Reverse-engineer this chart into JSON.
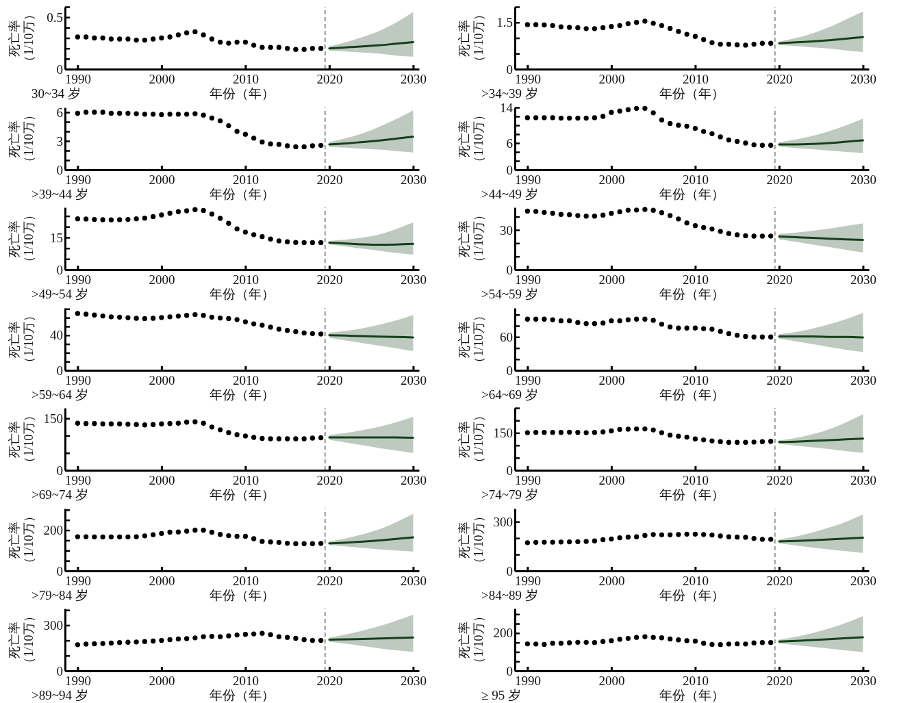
{
  "chart_data": [
    {
      "type": "line",
      "xlabel": "年份（年）",
      "ylabel": "死亡率（1/10万）",
      "annotations": [
        "30~34 岁"
      ],
      "xlim": [
        1988.5,
        2030.7
      ],
      "xticks": [
        1990,
        2000,
        2010,
        2020,
        2030
      ],
      "ylim": [
        0,
        0.6
      ],
      "yticks": [
        0,
        {
          "value": 0.1,
          "label": null
        },
        {
          "value": 0.2,
          "label": null
        },
        {
          "value": 0.3,
          "label": null
        },
        {
          "value": 0.4,
          "label": null
        },
        0.5,
        {
          "value": 0.6,
          "label": null
        }
      ],
      "ref_lines": [
        {
          "axis": "x",
          "value": 2019.5,
          "color": "#999999",
          "line_style": "dashed"
        }
      ],
      "series": [
        {
          "type": "scatter",
          "marker": "circle",
          "color": "#000000",
          "x": [
            1990,
            1991,
            1992,
            1993,
            1994,
            1995,
            1996,
            1997,
            1998,
            1999,
            2000,
            2001,
            2002,
            2003,
            2004,
            2005,
            2006,
            2007,
            2008,
            2009,
            2010,
            2011,
            2012,
            2013,
            2014,
            2015,
            2016,
            2017,
            2018,
            2019
          ],
          "values": [
            0.31,
            0.31,
            0.3,
            0.3,
            0.29,
            0.29,
            0.29,
            0.28,
            0.28,
            0.29,
            0.3,
            0.31,
            0.33,
            0.35,
            0.36,
            0.33,
            0.29,
            0.26,
            0.25,
            0.26,
            0.26,
            0.23,
            0.21,
            0.21,
            0.21,
            0.2,
            0.19,
            0.19,
            0.2,
            0.2
          ]
        },
        {
          "marker": "none",
          "color": "#14401a",
          "x": [
            2020,
            2022,
            2024,
            2026,
            2028,
            2030
          ],
          "values": [
            0.2,
            0.21,
            0.22,
            0.23,
            0.245,
            0.26
          ],
          "lower": [
            0.18,
            0.17,
            0.16,
            0.15,
            0.13,
            0.12
          ],
          "upper": [
            0.22,
            0.26,
            0.31,
            0.37,
            0.45,
            0.55
          ]
        }
      ]
    },
    {
      "type": "line",
      "xlabel": "年份（年）",
      "ylabel": "死亡率（1/10万）",
      "annotations": [
        ">34~39 岁"
      ],
      "xlim": [
        1988.5,
        2030.7
      ],
      "xticks": [
        1990,
        2000,
        2010,
        2020,
        2030
      ],
      "ylim": [
        0,
        2
      ],
      "yticks": [
        0,
        {
          "value": 0.5,
          "label": null
        },
        {
          "value": 1,
          "label": null
        },
        1.5,
        {
          "value": 2,
          "label": null
        }
      ],
      "ref_lines": [
        {
          "axis": "x",
          "value": 2019.5,
          "color": "#999999",
          "line_style": "dashed"
        }
      ],
      "series": [
        {
          "type": "scatter",
          "marker": "circle",
          "color": "#000000",
          "x": [
            1990,
            1991,
            1992,
            1993,
            1994,
            1995,
            1996,
            1997,
            1998,
            1999,
            2000,
            2001,
            2002,
            2003,
            2004,
            2005,
            2006,
            2007,
            2008,
            2009,
            2010,
            2011,
            2012,
            2013,
            2014,
            2015,
            2016,
            2017,
            2018,
            2019
          ],
          "values": [
            1.43,
            1.43,
            1.42,
            1.4,
            1.36,
            1.34,
            1.33,
            1.3,
            1.3,
            1.33,
            1.37,
            1.4,
            1.46,
            1.5,
            1.54,
            1.47,
            1.4,
            1.31,
            1.21,
            1.12,
            1.05,
            0.95,
            0.85,
            0.8,
            0.8,
            0.78,
            0.77,
            0.8,
            0.83,
            0.83
          ]
        },
        {
          "marker": "none",
          "color": "#14401a",
          "x": [
            2020,
            2022,
            2024,
            2026,
            2028,
            2030
          ],
          "values": [
            0.83,
            0.86,
            0.89,
            0.93,
            0.98,
            1.03
          ],
          "lower": [
            0.78,
            0.74,
            0.7,
            0.66,
            0.6,
            0.55
          ],
          "upper": [
            0.88,
            1.0,
            1.15,
            1.35,
            1.6,
            1.85
          ]
        }
      ]
    },
    {
      "type": "line",
      "xlabel": "年份（年）",
      "ylabel": "死亡率（1/10万）",
      "annotations": [
        ">39~44 岁"
      ],
      "xlim": [
        1988.5,
        2030.7
      ],
      "xticks": [
        1990,
        2000,
        2010,
        2020,
        2030
      ],
      "ylim": [
        0,
        6.5
      ],
      "yticks": [
        0,
        {
          "value": 1,
          "label": null
        },
        {
          "value": 2,
          "label": null
        },
        3,
        {
          "value": 4,
          "label": null
        },
        {
          "value": 5,
          "label": null
        },
        6
      ],
      "ref_lines": [
        {
          "axis": "x",
          "value": 2019.5,
          "color": "#999999",
          "line_style": "dashed"
        }
      ],
      "series": [
        {
          "type": "scatter",
          "marker": "circle",
          "color": "#000000",
          "x": [
            1990,
            1991,
            1992,
            1993,
            1994,
            1995,
            1996,
            1997,
            1998,
            1999,
            2000,
            2001,
            2002,
            2003,
            2004,
            2005,
            2006,
            2007,
            2008,
            2009,
            2010,
            2011,
            2012,
            2013,
            2014,
            2015,
            2016,
            2017,
            2018,
            2019
          ],
          "values": [
            5.9,
            6.0,
            6.0,
            6.0,
            5.9,
            5.9,
            5.9,
            5.85,
            5.8,
            5.8,
            5.75,
            5.8,
            5.8,
            5.8,
            5.85,
            5.7,
            5.4,
            5.1,
            4.6,
            4.0,
            3.7,
            3.3,
            2.9,
            2.7,
            2.65,
            2.5,
            2.4,
            2.4,
            2.5,
            2.55
          ]
        },
        {
          "marker": "none",
          "color": "#14401a",
          "x": [
            2020,
            2022,
            2024,
            2026,
            2028,
            2030
          ],
          "values": [
            2.65,
            2.75,
            2.9,
            3.05,
            3.25,
            3.45
          ],
          "lower": [
            2.4,
            2.3,
            2.2,
            2.1,
            1.95,
            1.8
          ],
          "upper": [
            2.9,
            3.3,
            3.8,
            4.5,
            5.3,
            6.2
          ]
        }
      ]
    },
    {
      "type": "line",
      "xlabel": "年份（年）",
      "ylabel": "死亡率（1/10万）",
      "annotations": [
        ">44~49 岁"
      ],
      "xlim": [
        1988.5,
        2030.7
      ],
      "xticks": [
        1990,
        2000,
        2010,
        2020,
        2030
      ],
      "ylim": [
        0,
        14
      ],
      "yticks": [
        0,
        {
          "value": 2,
          "label": null
        },
        {
          "value": 4,
          "label": null
        },
        6,
        {
          "value": 8,
          "label": null
        },
        {
          "value": 10,
          "label": null
        },
        {
          "value": 12,
          "label": null
        },
        14
      ],
      "ref_lines": [
        {
          "axis": "x",
          "value": 2019.5,
          "color": "#999999",
          "line_style": "dashed"
        }
      ],
      "series": [
        {
          "type": "scatter",
          "marker": "circle",
          "color": "#000000",
          "x": [
            1990,
            1991,
            1992,
            1993,
            1994,
            1995,
            1996,
            1997,
            1998,
            1999,
            2000,
            2001,
            2002,
            2003,
            2004,
            2005,
            2006,
            2007,
            2008,
            2009,
            2010,
            2011,
            2012,
            2013,
            2014,
            2015,
            2016,
            2017,
            2018,
            2019
          ],
          "values": [
            11.7,
            11.7,
            11.7,
            11.7,
            11.6,
            11.6,
            11.6,
            11.6,
            11.7,
            12.0,
            12.9,
            13.2,
            13.5,
            13.8,
            13.8,
            12.8,
            11.2,
            10.4,
            10.0,
            9.8,
            9.3,
            8.6,
            8.1,
            7.4,
            6.7,
            6.4,
            6.0,
            5.6,
            5.5,
            5.5
          ]
        },
        {
          "marker": "none",
          "color": "#14401a",
          "x": [
            2020,
            2022,
            2024,
            2026,
            2028,
            2030
          ],
          "values": [
            5.7,
            5.7,
            5.8,
            6.0,
            6.3,
            6.6
          ],
          "lower": [
            5.2,
            4.9,
            4.6,
            4.3,
            4.0,
            3.8
          ],
          "upper": [
            6.2,
            6.8,
            7.6,
            8.7,
            10.0,
            11.5
          ]
        }
      ]
    },
    {
      "type": "line",
      "xlabel": "年份（年）",
      "ylabel": "死亡率（1/10万）",
      "annotations": [
        ">49~54 岁"
      ],
      "xlim": [
        1988.5,
        2030.7
      ],
      "xticks": [
        1990,
        2000,
        2010,
        2020,
        2030
      ],
      "ylim": [
        0,
        29
      ],
      "yticks": [
        0,
        {
          "value": 5,
          "label": null
        },
        {
          "value": 10,
          "label": null
        },
        15,
        {
          "value": 20,
          "label": null
        },
        {
          "value": 25,
          "label": null
        }
      ],
      "ref_lines": [
        {
          "axis": "x",
          "value": 2019.5,
          "color": "#999999",
          "line_style": "dashed"
        }
      ],
      "series": [
        {
          "type": "scatter",
          "marker": "circle",
          "color": "#000000",
          "x": [
            1990,
            1991,
            1992,
            1993,
            1994,
            1995,
            1996,
            1997,
            1998,
            1999,
            2000,
            2001,
            2002,
            2003,
            2004,
            2005,
            2006,
            2007,
            2008,
            2009,
            2010,
            2011,
            2012,
            2013,
            2014,
            2015,
            2016,
            2017,
            2018,
            2019
          ],
          "values": [
            23.7,
            23.6,
            23.4,
            23.3,
            23.2,
            23.3,
            23.4,
            23.7,
            24.0,
            24.7,
            25.5,
            26.3,
            27.0,
            27.4,
            28.0,
            27.6,
            25.9,
            23.9,
            21.6,
            19.0,
            17.5,
            16.3,
            15.4,
            14.3,
            13.4,
            13.0,
            12.7,
            12.6,
            12.6,
            12.6
          ]
        },
        {
          "marker": "none",
          "color": "#14401a",
          "x": [
            2020,
            2022,
            2024,
            2026,
            2028,
            2030
          ],
          "values": [
            12.6,
            12.2,
            11.8,
            11.6,
            11.7,
            12.0
          ],
          "lower": [
            11.8,
            10.8,
            9.8,
            8.8,
            7.8,
            7.0
          ],
          "upper": [
            13.4,
            14.0,
            15.0,
            16.5,
            19.0,
            22.0
          ]
        }
      ]
    },
    {
      "type": "line",
      "xlabel": "年份（年）",
      "ylabel": "死亡率（1/10万）",
      "annotations": [
        ">54~59 岁"
      ],
      "xlim": [
        1988.5,
        2030.7
      ],
      "xticks": [
        1990,
        2000,
        2010,
        2020,
        2030
      ],
      "ylim": [
        0,
        47
      ],
      "yticks": [
        0,
        {
          "value": 10,
          "label": null
        },
        {
          "value": 20,
          "label": null
        },
        30,
        {
          "value": 40,
          "label": null
        }
      ],
      "ref_lines": [
        {
          "axis": "x",
          "value": 2019.5,
          "color": "#999999",
          "line_style": "dashed"
        }
      ],
      "series": [
        {
          "type": "scatter",
          "marker": "circle",
          "color": "#000000",
          "x": [
            1990,
            1991,
            1992,
            1993,
            1994,
            1995,
            1996,
            1997,
            1998,
            1999,
            2000,
            2001,
            2002,
            2003,
            2004,
            2005,
            2006,
            2007,
            2008,
            2009,
            2010,
            2011,
            2012,
            2013,
            2014,
            2015,
            2016,
            2017,
            2018,
            2019
          ],
          "values": [
            44.2,
            44.0,
            43.2,
            42.6,
            41.7,
            41.5,
            40.9,
            40.4,
            40.4,
            41.2,
            42.5,
            43.7,
            44.9,
            45.0,
            45.5,
            44.8,
            43.0,
            40.9,
            38.3,
            35.3,
            33.2,
            31.8,
            30.7,
            28.9,
            27.3,
            26.4,
            25.6,
            25.3,
            25.3,
            25.4
          ]
        },
        {
          "marker": "none",
          "color": "#14401a",
          "x": [
            2020,
            2022,
            2024,
            2026,
            2028,
            2030
          ],
          "values": [
            25.0,
            24.5,
            24.0,
            23.4,
            22.9,
            22.5
          ],
          "lower": [
            23,
            21,
            19,
            17,
            15,
            13
          ],
          "upper": [
            27,
            28,
            29.5,
            31,
            33,
            35
          ]
        }
      ]
    },
    {
      "type": "line",
      "xlabel": "年份（年）",
      "ylabel": "死亡率（1/10万）",
      "annotations": [
        ">59~64 岁"
      ],
      "xlim": [
        1988.5,
        2030.7
      ],
      "xticks": [
        1990,
        2000,
        2010,
        2020,
        2030
      ],
      "ylim": [
        0,
        71
      ],
      "yticks": [
        0,
        {
          "value": 10,
          "label": null
        },
        {
          "value": 20,
          "label": null
        },
        {
          "value": 30,
          "label": null
        },
        40,
        {
          "value": 50,
          "label": null
        },
        {
          "value": 60,
          "label": null
        },
        {
          "value": 70,
          "label": null
        }
      ],
      "ref_lines": [
        {
          "axis": "x",
          "value": 2019.5,
          "color": "#999999",
          "line_style": "dashed"
        }
      ],
      "series": [
        {
          "type": "scatter",
          "marker": "circle",
          "color": "#000000",
          "x": [
            1990,
            1991,
            1992,
            1993,
            1994,
            1995,
            1996,
            1997,
            1998,
            1999,
            2000,
            2001,
            2002,
            2003,
            2004,
            2005,
            2006,
            2007,
            2008,
            2009,
            2010,
            2011,
            2012,
            2013,
            2014,
            2015,
            2016,
            2017,
            2018,
            2019
          ],
          "values": [
            64.8,
            64.0,
            63.0,
            62.0,
            61.0,
            60.6,
            60.0,
            59.3,
            59.0,
            59.3,
            60.2,
            61.0,
            61.8,
            62.6,
            63.5,
            62.6,
            60.6,
            59.6,
            59.0,
            57.9,
            55.3,
            53.0,
            51.4,
            49.2,
            46.9,
            45.5,
            44.1,
            42.6,
            41.9,
            41.4
          ]
        },
        {
          "marker": "none",
          "color": "#14401a",
          "x": [
            2020,
            2022,
            2024,
            2026,
            2028,
            2030
          ],
          "values": [
            40,
            39.5,
            39,
            38.5,
            38,
            37.5
          ],
          "lower": [
            37,
            34,
            31,
            28,
            25,
            22
          ],
          "upper": [
            43,
            45,
            48,
            52,
            57,
            63
          ]
        }
      ]
    },
    {
      "type": "line",
      "xlabel": "年份（年）",
      "ylabel": "死亡率（1/10万）",
      "annotations": [
        ">64~69 岁"
      ],
      "xlim": [
        1988.5,
        2030.7
      ],
      "xticks": [
        1990,
        2000,
        2010,
        2020,
        2030
      ],
      "ylim": [
        0,
        112
      ],
      "yticks": [
        0,
        {
          "value": 20,
          "label": null
        },
        {
          "value": 40,
          "label": null
        },
        60,
        {
          "value": 80,
          "label": null
        },
        {
          "value": 100,
          "label": null
        }
      ],
      "ref_lines": [
        {
          "axis": "x",
          "value": 2019.5,
          "color": "#999999",
          "line_style": "dashed"
        }
      ],
      "series": [
        {
          "type": "scatter",
          "marker": "circle",
          "color": "#000000",
          "x": [
            1990,
            1991,
            1992,
            1993,
            1994,
            1995,
            1996,
            1997,
            1998,
            1999,
            2000,
            2001,
            2002,
            2003,
            2004,
            2005,
            2006,
            2007,
            2008,
            2009,
            2010,
            2011,
            2012,
            2013,
            2014,
            2015,
            2016,
            2017,
            2018,
            2019
          ],
          "values": [
            92,
            92,
            92,
            91,
            89,
            89,
            86,
            84,
            84,
            85,
            89,
            89,
            91,
            92,
            92,
            90,
            83,
            78,
            76,
            76,
            76,
            75,
            74,
            70,
            66,
            63,
            61,
            60,
            60,
            60
          ]
        },
        {
          "marker": "none",
          "color": "#14401a",
          "x": [
            2020,
            2022,
            2024,
            2026,
            2028,
            2030
          ],
          "values": [
            61,
            61,
            61,
            60,
            60,
            59
          ],
          "lower": [
            57,
            52,
            47,
            42,
            37,
            33
          ],
          "upper": [
            65,
            69,
            75,
            83,
            92,
            103
          ]
        }
      ]
    },
    {
      "type": "line",
      "xlabel": "年份（年）",
      "ylabel": "死亡率（1/10万）",
      "annotations": [
        ">69~74 岁"
      ],
      "xlim": [
        1988.5,
        2030.7
      ],
      "xticks": [
        1990,
        2000,
        2010,
        2020,
        2030
      ],
      "ylim": [
        0,
        180
      ],
      "yticks": [
        0,
        {
          "value": 50,
          "label": null
        },
        {
          "value": 100,
          "label": null
        },
        150
      ],
      "ref_lines": [
        {
          "axis": "x",
          "value": 2019.5,
          "color": "#999999",
          "line_style": "dashed"
        }
      ],
      "series": [
        {
          "type": "scatter",
          "marker": "circle",
          "color": "#000000",
          "x": [
            1990,
            1991,
            1992,
            1993,
            1994,
            1995,
            1996,
            1997,
            1998,
            1999,
            2000,
            2001,
            2002,
            2003,
            2004,
            2005,
            2006,
            2007,
            2008,
            2009,
            2010,
            2011,
            2012,
            2013,
            2014,
            2015,
            2016,
            2017,
            2018,
            2019
          ],
          "values": [
            136,
            135,
            135,
            134,
            134,
            134,
            133,
            132,
            131,
            132,
            134,
            135,
            136,
            139,
            140,
            136,
            125,
            117,
            109,
            103,
            99,
            95,
            92,
            91,
            91,
            91,
            91,
            91,
            93,
            94
          ]
        },
        {
          "marker": "none",
          "color": "#14401a",
          "x": [
            2020,
            2022,
            2024,
            2026,
            2028,
            2030
          ],
          "values": [
            95,
            95,
            95,
            95,
            95,
            94
          ],
          "lower": [
            88,
            80,
            72,
            64,
            57,
            50
          ],
          "upper": [
            102,
            108,
            116,
            126,
            139,
            155
          ]
        }
      ]
    },
    {
      "type": "line",
      "xlabel": "年份（年）",
      "ylabel": "死亡率（1/10万）",
      "annotations": [
        ">74~79 岁"
      ],
      "xlim": [
        1988.5,
        2030.7
      ],
      "xticks": [
        1990,
        2000,
        2010,
        2020,
        2030
      ],
      "ylim": [
        0,
        250
      ],
      "yticks": [
        0,
        {
          "value": 50,
          "label": null
        },
        {
          "value": 100,
          "label": null
        },
        150,
        {
          "value": 200,
          "label": null
        },
        {
          "value": 250,
          "label": null
        }
      ],
      "ref_lines": [
        {
          "axis": "x",
          "value": 2019.5,
          "color": "#999999",
          "line_style": "dashed"
        }
      ],
      "series": [
        {
          "type": "scatter",
          "marker": "circle",
          "color": "#000000",
          "x": [
            1990,
            1991,
            1992,
            1993,
            1994,
            1995,
            1996,
            1997,
            1998,
            1999,
            2000,
            2001,
            2002,
            2003,
            2004,
            2005,
            2006,
            2007,
            2008,
            2009,
            2010,
            2011,
            2012,
            2013,
            2014,
            2015,
            2016,
            2017,
            2018,
            2019
          ],
          "values": [
            151,
            152,
            152,
            152,
            152,
            153,
            152,
            151,
            152,
            154,
            158,
            164,
            165,
            166,
            166,
            162,
            151,
            141,
            137,
            133,
            126,
            122,
            118,
            115,
            112,
            112,
            112,
            113,
            115,
            116
          ]
        },
        {
          "marker": "none",
          "color": "#14401a",
          "x": [
            2020,
            2022,
            2024,
            2026,
            2028,
            2030
          ],
          "values": [
            113,
            115,
            118,
            121,
            124,
            127
          ],
          "lower": [
            106,
            99,
            92,
            85,
            77,
            70
          ],
          "upper": [
            120,
            130,
            145,
            165,
            192,
            225
          ]
        }
      ]
    },
    {
      "type": "line",
      "xlabel": "年份（年）",
      "ylabel": "死亡率（1/10万）",
      "annotations": [
        ">79~84 岁"
      ],
      "xlim": [
        1988.5,
        2030.7
      ],
      "xticks": [
        1990,
        2000,
        2010,
        2020,
        2030
      ],
      "ylim": [
        0,
        306
      ],
      "yticks": [
        0,
        {
          "value": 50,
          "label": null
        },
        {
          "value": 100,
          "label": null
        },
        {
          "value": 150,
          "label": null
        },
        200,
        {
          "value": 250,
          "label": null
        },
        {
          "value": 300,
          "label": null
        }
      ],
      "ref_lines": [
        {
          "axis": "x",
          "value": 2019.5,
          "color": "#999999",
          "line_style": "dashed"
        }
      ],
      "series": [
        {
          "type": "scatter",
          "marker": "circle",
          "color": "#000000",
          "x": [
            1990,
            1991,
            1992,
            1993,
            1994,
            1995,
            1996,
            1997,
            1998,
            1999,
            2000,
            2001,
            2002,
            2003,
            2004,
            2005,
            2006,
            2007,
            2008,
            2009,
            2010,
            2011,
            2012,
            2013,
            2014,
            2015,
            2016,
            2017,
            2018,
            2019
          ],
          "values": [
            168,
            168,
            167,
            167,
            167,
            167,
            167,
            168,
            172,
            178,
            184,
            190,
            191,
            195,
            200,
            200,
            190,
            179,
            173,
            170,
            170,
            158,
            145,
            142,
            140,
            136,
            134,
            134,
            134,
            135
          ]
        },
        {
          "marker": "none",
          "color": "#14401a",
          "x": [
            2020,
            2022,
            2024,
            2026,
            2028,
            2030
          ],
          "values": [
            135,
            139,
            144,
            150,
            157,
            165
          ],
          "lower": [
            127,
            120,
            113,
            106,
            100,
            95
          ],
          "upper": [
            145,
            160,
            180,
            205,
            240,
            280
          ]
        }
      ]
    },
    {
      "type": "line",
      "xlabel": "年份（年）",
      "ylabel": "死亡率（1/10万）",
      "annotations": [
        ">84~89 岁"
      ],
      "xlim": [
        1988.5,
        2030.7
      ],
      "xticks": [
        1990,
        2000,
        2010,
        2020,
        2030
      ],
      "ylim": [
        0,
        380
      ],
      "yticks": [
        0,
        {
          "value": 100,
          "label": null
        },
        {
          "value": 200,
          "label": null
        },
        300
      ],
      "ref_lines": [
        {
          "axis": "x",
          "value": 2019.5,
          "color": "#999999",
          "line_style": "dashed"
        }
      ],
      "series": [
        {
          "type": "scatter",
          "marker": "circle",
          "color": "#000000",
          "x": [
            1990,
            1991,
            1992,
            1993,
            1994,
            1995,
            1996,
            1997,
            1998,
            1999,
            2000,
            2001,
            2002,
            2003,
            2004,
            2005,
            2006,
            2007,
            2008,
            2009,
            2010,
            2011,
            2012,
            2013,
            2014,
            2015,
            2016,
            2017,
            2018,
            2019
          ],
          "values": [
            172,
            174,
            175,
            175,
            176,
            177,
            178,
            180,
            183,
            190,
            195,
            202,
            206,
            208,
            216,
            222,
            220,
            220,
            222,
            224,
            224,
            222,
            219,
            213,
            208,
            206,
            205,
            198,
            193,
            193
          ]
        },
        {
          "marker": "none",
          "color": "#14401a",
          "x": [
            2020,
            2022,
            2024,
            2026,
            2028,
            2030
          ],
          "values": [
            180,
            183,
            187,
            192,
            197,
            203
          ],
          "lower": [
            168,
            155,
            142,
            130,
            120,
            110
          ],
          "upper": [
            192,
            210,
            235,
            265,
            300,
            345
          ]
        }
      ]
    },
    {
      "type": "line",
      "xlabel": "年份（年）",
      "ylabel": "死亡率（1/10万）",
      "annotations": [
        ">89~94 岁"
      ],
      "xlim": [
        1988.5,
        2030.7
      ],
      "xticks": [
        1990,
        2000,
        2010,
        2020,
        2030
      ],
      "ylim": [
        0,
        410
      ],
      "yticks": [
        0,
        {
          "value": 100,
          "label": null
        },
        {
          "value": 200,
          "label": null
        },
        300,
        {
          "value": 400,
          "label": null
        }
      ],
      "ref_lines": [
        {
          "axis": "x",
          "value": 2019.5,
          "color": "#999999",
          "line_style": "dashed"
        }
      ],
      "series": [
        {
          "type": "scatter",
          "marker": "circle",
          "color": "#000000",
          "x": [
            1990,
            1991,
            1992,
            1993,
            1994,
            1995,
            1996,
            1997,
            1998,
            1999,
            2000,
            2001,
            2002,
            2003,
            2004,
            2005,
            2006,
            2007,
            2008,
            2009,
            2010,
            2011,
            2012,
            2013,
            2014,
            2015,
            2016,
            2017,
            2018,
            2019
          ],
          "values": [
            172,
            176,
            178,
            180,
            183,
            186,
            188,
            190,
            193,
            196,
            200,
            205,
            210,
            212,
            217,
            225,
            227,
            225,
            230,
            236,
            240,
            243,
            247,
            238,
            225,
            220,
            214,
            205,
            200,
            200
          ]
        },
        {
          "marker": "none",
          "color": "#14401a",
          "x": [
            2020,
            2022,
            2024,
            2026,
            2028,
            2030
          ],
          "values": [
            205,
            207,
            210,
            213,
            216,
            220
          ],
          "lower": [
            192,
            178,
            163,
            148,
            135,
            125
          ],
          "upper": [
            218,
            240,
            265,
            295,
            330,
            370
          ]
        }
      ]
    },
    {
      "type": "line",
      "xlabel": "年份（年）",
      "ylabel": "死亡率（1/10万）",
      "annotations": [
        "≥ 95 岁"
      ],
      "xlim": [
        1988.5,
        2030.7
      ],
      "xticks": [
        1990,
        2000,
        2010,
        2020,
        2030
      ],
      "ylim": [
        0,
        330
      ],
      "yticks": [
        0,
        {
          "value": 50,
          "label": null
        },
        {
          "value": 100,
          "label": null
        },
        {
          "value": 150,
          "label": null
        },
        200,
        {
          "value": 250,
          "label": null
        },
        {
          "value": 300,
          "label": null
        }
      ],
      "ref_lines": [
        {
          "axis": "x",
          "value": 2019.5,
          "color": "#999999",
          "line_style": "dashed"
        }
      ],
      "series": [
        {
          "type": "scatter",
          "marker": "circle",
          "color": "#000000",
          "x": [
            1990,
            1991,
            1992,
            1993,
            1994,
            1995,
            1996,
            1997,
            1998,
            1999,
            2000,
            2001,
            2002,
            2003,
            2004,
            2005,
            2006,
            2007,
            2008,
            2009,
            2010,
            2011,
            2012,
            2013,
            2014,
            2015,
            2016,
            2017,
            2018,
            2019
          ],
          "values": [
            143,
            142,
            140,
            146,
            146,
            149,
            151,
            151,
            150,
            155,
            160,
            167,
            172,
            177,
            181,
            177,
            175,
            169,
            164,
            160,
            157,
            146,
            140,
            139,
            142,
            143,
            142,
            148,
            150,
            150
          ]
        },
        {
          "marker": "none",
          "color": "#14401a",
          "x": [
            2020,
            2022,
            2024,
            2026,
            2028,
            2030
          ],
          "values": [
            155,
            159,
            163,
            168,
            173,
            178
          ],
          "lower": [
            145,
            136,
            127,
            118,
            108,
            100
          ],
          "upper": [
            165,
            180,
            200,
            225,
            255,
            290
          ]
        }
      ]
    }
  ]
}
